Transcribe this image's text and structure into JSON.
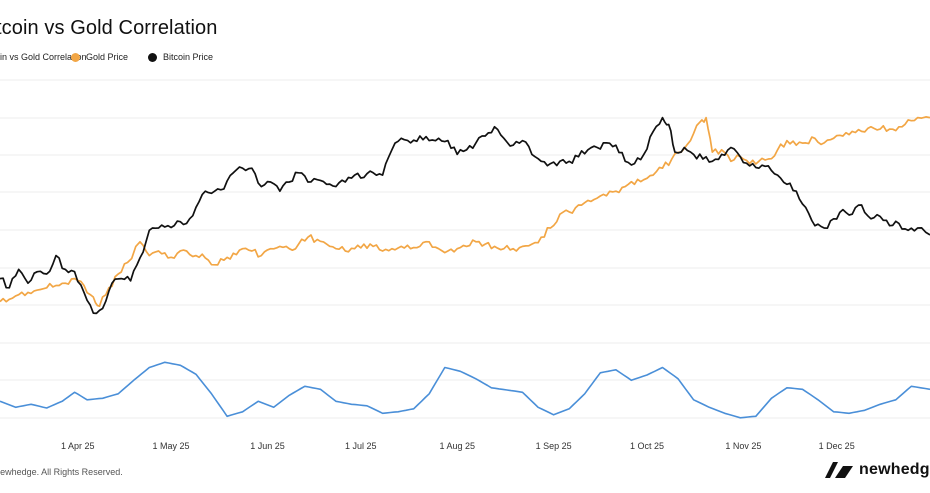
{
  "header": {
    "title": "Bitcoin vs Gold Correlation"
  },
  "legend": [
    {
      "label": "Bitcoin vs Gold Correlation",
      "color": "#4a8fd8"
    },
    {
      "label": "Gold Price",
      "color": "#f2a645"
    },
    {
      "label": "Bitcoin Price",
      "color": "#111111"
    }
  ],
  "footer": {
    "copyright": "© newhedge. All Rights Reserved.",
    "brand": "newhedge"
  },
  "chart_data": {
    "type": "line",
    "title": "Bitcoin vs Gold Correlation",
    "x_ticks": [
      "1 Apr 25",
      "1 May 25",
      "1 Jun 25",
      "1 Jul 25",
      "1 Aug 25",
      "1 Sep 25",
      "1 Oct 25",
      "1 Nov 25",
      "1 Dec 25"
    ],
    "x_range": [
      "2025-03-07",
      "2025-12-31"
    ],
    "grid": true,
    "legend_position": "top-left",
    "series": [
      {
        "name": "Bitcoin Price",
        "color": "#111111",
        "axis": "left",
        "points": [
          [
            "2025-03-07",
            0.18
          ],
          [
            "2025-03-10",
            0.14
          ],
          [
            "2025-03-13",
            0.22
          ],
          [
            "2025-03-16",
            0.16
          ],
          [
            "2025-03-19",
            0.21
          ],
          [
            "2025-03-22",
            0.2
          ],
          [
            "2025-03-25",
            0.28
          ],
          [
            "2025-03-28",
            0.22
          ],
          [
            "2025-03-31",
            0.21
          ],
          [
            "2025-04-03",
            0.12
          ],
          [
            "2025-04-06",
            0.03
          ],
          [
            "2025-04-09",
            0.05
          ],
          [
            "2025-04-12",
            0.16
          ],
          [
            "2025-04-15",
            0.18
          ],
          [
            "2025-04-18",
            0.17
          ],
          [
            "2025-04-21",
            0.27
          ],
          [
            "2025-04-24",
            0.39
          ],
          [
            "2025-04-27",
            0.4
          ],
          [
            "2025-04-30",
            0.41
          ],
          [
            "2025-05-03",
            0.43
          ],
          [
            "2025-05-06",
            0.42
          ],
          [
            "2025-05-09",
            0.49
          ],
          [
            "2025-05-12",
            0.56
          ],
          [
            "2025-05-15",
            0.56
          ],
          [
            "2025-05-18",
            0.57
          ],
          [
            "2025-05-21",
            0.64
          ],
          [
            "2025-05-24",
            0.66
          ],
          [
            "2025-05-27",
            0.66
          ],
          [
            "2025-05-30",
            0.58
          ],
          [
            "2025-06-02",
            0.6
          ],
          [
            "2025-06-05",
            0.56
          ],
          [
            "2025-06-08",
            0.6
          ],
          [
            "2025-06-11",
            0.64
          ],
          [
            "2025-06-14",
            0.6
          ],
          [
            "2025-06-17",
            0.61
          ],
          [
            "2025-06-20",
            0.59
          ],
          [
            "2025-06-23",
            0.58
          ],
          [
            "2025-06-26",
            0.6
          ],
          [
            "2025-06-29",
            0.63
          ],
          [
            "2025-07-02",
            0.62
          ],
          [
            "2025-07-05",
            0.64
          ],
          [
            "2025-07-08",
            0.63
          ],
          [
            "2025-07-11",
            0.74
          ],
          [
            "2025-07-14",
            0.79
          ],
          [
            "2025-07-17",
            0.77
          ],
          [
            "2025-07-20",
            0.8
          ],
          [
            "2025-07-23",
            0.78
          ],
          [
            "2025-07-26",
            0.79
          ],
          [
            "2025-07-29",
            0.78
          ],
          [
            "2025-08-01",
            0.72
          ],
          [
            "2025-08-04",
            0.74
          ],
          [
            "2025-08-07",
            0.77
          ],
          [
            "2025-08-10",
            0.8
          ],
          [
            "2025-08-13",
            0.84
          ],
          [
            "2025-08-16",
            0.79
          ],
          [
            "2025-08-19",
            0.76
          ],
          [
            "2025-08-22",
            0.78
          ],
          [
            "2025-08-25",
            0.72
          ],
          [
            "2025-08-28",
            0.69
          ],
          [
            "2025-08-31",
            0.68
          ],
          [
            "2025-09-03",
            0.69
          ],
          [
            "2025-09-06",
            0.69
          ],
          [
            "2025-09-09",
            0.71
          ],
          [
            "2025-09-12",
            0.74
          ],
          [
            "2025-09-15",
            0.75
          ],
          [
            "2025-09-18",
            0.77
          ],
          [
            "2025-09-21",
            0.76
          ],
          [
            "2025-09-24",
            0.69
          ],
          [
            "2025-09-27",
            0.68
          ],
          [
            "2025-09-30",
            0.72
          ],
          [
            "2025-10-03",
            0.82
          ],
          [
            "2025-10-06",
            0.88
          ],
          [
            "2025-10-08",
            0.85
          ],
          [
            "2025-10-10",
            0.73
          ],
          [
            "2025-10-13",
            0.75
          ],
          [
            "2025-10-16",
            0.72
          ],
          [
            "2025-10-19",
            0.7
          ],
          [
            "2025-10-22",
            0.69
          ],
          [
            "2025-10-25",
            0.72
          ],
          [
            "2025-10-28",
            0.75
          ],
          [
            "2025-10-31",
            0.71
          ],
          [
            "2025-11-03",
            0.67
          ],
          [
            "2025-11-06",
            0.66
          ],
          [
            "2025-11-09",
            0.67
          ],
          [
            "2025-11-12",
            0.63
          ],
          [
            "2025-11-15",
            0.59
          ],
          [
            "2025-11-18",
            0.56
          ],
          [
            "2025-11-21",
            0.49
          ],
          [
            "2025-11-24",
            0.41
          ],
          [
            "2025-11-27",
            0.4
          ],
          [
            "2025-11-30",
            0.44
          ],
          [
            "2025-12-03",
            0.48
          ],
          [
            "2025-12-06",
            0.46
          ],
          [
            "2025-12-09",
            0.5
          ],
          [
            "2025-12-12",
            0.44
          ],
          [
            "2025-12-15",
            0.45
          ],
          [
            "2025-12-18",
            0.41
          ],
          [
            "2025-12-21",
            0.42
          ],
          [
            "2025-12-24",
            0.39
          ],
          [
            "2025-12-27",
            0.4
          ],
          [
            "2025-12-31",
            0.37
          ]
        ]
      },
      {
        "name": "Gold Price",
        "color": "#f2a645",
        "axis": "left",
        "points": [
          [
            "2025-03-07",
            0.08
          ],
          [
            "2025-03-10",
            0.09
          ],
          [
            "2025-03-13",
            0.11
          ],
          [
            "2025-03-16",
            0.12
          ],
          [
            "2025-03-19",
            0.13
          ],
          [
            "2025-03-22",
            0.14
          ],
          [
            "2025-03-25",
            0.15
          ],
          [
            "2025-03-28",
            0.16
          ],
          [
            "2025-03-31",
            0.18
          ],
          [
            "2025-04-03",
            0.15
          ],
          [
            "2025-04-06",
            0.1
          ],
          [
            "2025-04-08",
            0.06
          ],
          [
            "2025-04-11",
            0.14
          ],
          [
            "2025-04-14",
            0.2
          ],
          [
            "2025-04-17",
            0.25
          ],
          [
            "2025-04-21",
            0.34
          ],
          [
            "2025-04-24",
            0.28
          ],
          [
            "2025-04-27",
            0.3
          ],
          [
            "2025-04-30",
            0.27
          ],
          [
            "2025-05-03",
            0.29
          ],
          [
            "2025-05-06",
            0.3
          ],
          [
            "2025-05-09",
            0.28
          ],
          [
            "2025-05-12",
            0.27
          ],
          [
            "2025-05-15",
            0.24
          ],
          [
            "2025-05-18",
            0.26
          ],
          [
            "2025-05-21",
            0.29
          ],
          [
            "2025-05-24",
            0.31
          ],
          [
            "2025-05-27",
            0.3
          ],
          [
            "2025-05-30",
            0.28
          ],
          [
            "2025-06-02",
            0.31
          ],
          [
            "2025-06-05",
            0.32
          ],
          [
            "2025-06-08",
            0.31
          ],
          [
            "2025-06-11",
            0.33
          ],
          [
            "2025-06-14",
            0.36
          ],
          [
            "2025-06-17",
            0.35
          ],
          [
            "2025-06-20",
            0.33
          ],
          [
            "2025-06-23",
            0.31
          ],
          [
            "2025-06-26",
            0.3
          ],
          [
            "2025-06-29",
            0.31
          ],
          [
            "2025-07-02",
            0.33
          ],
          [
            "2025-07-05",
            0.32
          ],
          [
            "2025-07-08",
            0.3
          ],
          [
            "2025-07-11",
            0.31
          ],
          [
            "2025-07-14",
            0.32
          ],
          [
            "2025-07-17",
            0.31
          ],
          [
            "2025-07-20",
            0.32
          ],
          [
            "2025-07-23",
            0.34
          ],
          [
            "2025-07-26",
            0.31
          ],
          [
            "2025-07-29",
            0.3
          ],
          [
            "2025-08-01",
            0.31
          ],
          [
            "2025-08-04",
            0.32
          ],
          [
            "2025-08-07",
            0.34
          ],
          [
            "2025-08-10",
            0.33
          ],
          [
            "2025-08-13",
            0.32
          ],
          [
            "2025-08-16",
            0.31
          ],
          [
            "2025-08-19",
            0.31
          ],
          [
            "2025-08-22",
            0.32
          ],
          [
            "2025-08-25",
            0.33
          ],
          [
            "2025-08-28",
            0.36
          ],
          [
            "2025-08-31",
            0.4
          ],
          [
            "2025-09-03",
            0.46
          ],
          [
            "2025-09-06",
            0.47
          ],
          [
            "2025-09-09",
            0.5
          ],
          [
            "2025-09-12",
            0.52
          ],
          [
            "2025-09-15",
            0.53
          ],
          [
            "2025-09-18",
            0.54
          ],
          [
            "2025-09-21",
            0.56
          ],
          [
            "2025-09-24",
            0.58
          ],
          [
            "2025-09-27",
            0.59
          ],
          [
            "2025-09-30",
            0.61
          ],
          [
            "2025-10-03",
            0.63
          ],
          [
            "2025-10-06",
            0.66
          ],
          [
            "2025-10-09",
            0.7
          ],
          [
            "2025-10-12",
            0.73
          ],
          [
            "2025-10-15",
            0.78
          ],
          [
            "2025-10-18",
            0.86
          ],
          [
            "2025-10-20",
            0.88
          ],
          [
            "2025-10-22",
            0.73
          ],
          [
            "2025-10-25",
            0.74
          ],
          [
            "2025-10-28",
            0.69
          ],
          [
            "2025-10-31",
            0.71
          ],
          [
            "2025-11-03",
            0.68
          ],
          [
            "2025-11-06",
            0.69
          ],
          [
            "2025-11-09",
            0.7
          ],
          [
            "2025-11-12",
            0.74
          ],
          [
            "2025-11-15",
            0.78
          ],
          [
            "2025-11-18",
            0.76
          ],
          [
            "2025-11-21",
            0.77
          ],
          [
            "2025-11-24",
            0.79
          ],
          [
            "2025-11-27",
            0.77
          ],
          [
            "2025-11-30",
            0.79
          ],
          [
            "2025-12-03",
            0.8
          ],
          [
            "2025-12-06",
            0.82
          ],
          [
            "2025-12-09",
            0.82
          ],
          [
            "2025-12-12",
            0.84
          ],
          [
            "2025-12-15",
            0.83
          ],
          [
            "2025-12-18",
            0.83
          ],
          [
            "2025-12-21",
            0.84
          ],
          [
            "2025-12-24",
            0.87
          ],
          [
            "2025-12-27",
            0.88
          ],
          [
            "2025-12-31",
            0.88
          ]
        ]
      },
      {
        "name": "Bitcoin vs Gold Correlation",
        "color": "#4a8fd8",
        "axis": "right",
        "points": [
          [
            "2025-03-07",
            0.1
          ],
          [
            "2025-03-12",
            0.02
          ],
          [
            "2025-03-17",
            0.06
          ],
          [
            "2025-03-22",
            0.01
          ],
          [
            "2025-03-27",
            0.1
          ],
          [
            "2025-03-31",
            0.22
          ],
          [
            "2025-04-04",
            0.12
          ],
          [
            "2025-04-09",
            0.14
          ],
          [
            "2025-04-14",
            0.2
          ],
          [
            "2025-04-19",
            0.38
          ],
          [
            "2025-04-24",
            0.55
          ],
          [
            "2025-04-29",
            0.62
          ],
          [
            "2025-05-04",
            0.58
          ],
          [
            "2025-05-09",
            0.46
          ],
          [
            "2025-05-14",
            0.2
          ],
          [
            "2025-05-19",
            -0.1
          ],
          [
            "2025-05-24",
            -0.04
          ],
          [
            "2025-05-29",
            0.1
          ],
          [
            "2025-06-03",
            0.02
          ],
          [
            "2025-06-08",
            0.18
          ],
          [
            "2025-06-13",
            0.3
          ],
          [
            "2025-06-18",
            0.26
          ],
          [
            "2025-06-23",
            0.1
          ],
          [
            "2025-06-28",
            0.06
          ],
          [
            "2025-07-03",
            0.04
          ],
          [
            "2025-07-08",
            -0.06
          ],
          [
            "2025-07-13",
            -0.04
          ],
          [
            "2025-07-18",
            0.0
          ],
          [
            "2025-07-23",
            0.2
          ],
          [
            "2025-07-28",
            0.55
          ],
          [
            "2025-08-02",
            0.5
          ],
          [
            "2025-08-07",
            0.4
          ],
          [
            "2025-08-12",
            0.28
          ],
          [
            "2025-08-17",
            0.25
          ],
          [
            "2025-08-22",
            0.22
          ],
          [
            "2025-08-27",
            0.02
          ],
          [
            "2025-09-01",
            -0.08
          ],
          [
            "2025-09-06",
            0.0
          ],
          [
            "2025-09-11",
            0.2
          ],
          [
            "2025-09-16",
            0.48
          ],
          [
            "2025-09-21",
            0.52
          ],
          [
            "2025-09-26",
            0.38
          ],
          [
            "2025-10-01",
            0.45
          ],
          [
            "2025-10-06",
            0.55
          ],
          [
            "2025-10-11",
            0.4
          ],
          [
            "2025-10-16",
            0.12
          ],
          [
            "2025-10-21",
            0.02
          ],
          [
            "2025-10-26",
            -0.06
          ],
          [
            "2025-10-31",
            -0.12
          ],
          [
            "2025-11-05",
            -0.1
          ],
          [
            "2025-11-10",
            0.14
          ],
          [
            "2025-11-15",
            0.28
          ],
          [
            "2025-11-20",
            0.26
          ],
          [
            "2025-11-25",
            0.12
          ],
          [
            "2025-11-30",
            -0.04
          ],
          [
            "2025-12-05",
            -0.06
          ],
          [
            "2025-12-10",
            -0.02
          ],
          [
            "2025-12-15",
            0.06
          ],
          [
            "2025-12-20",
            0.12
          ],
          [
            "2025-12-25",
            0.3
          ],
          [
            "2025-12-31",
            0.26
          ]
        ]
      }
    ]
  }
}
